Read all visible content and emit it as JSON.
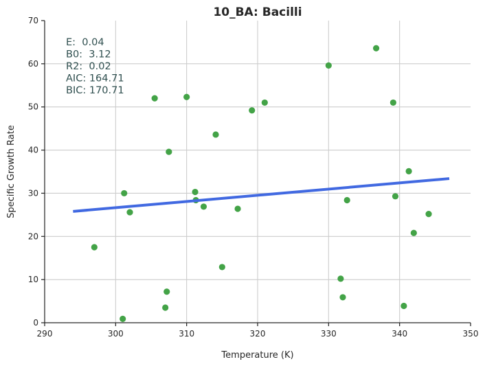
{
  "chart_data": {
    "type": "scatter",
    "title": "10_BA: Bacilli",
    "xlabel": "Temperature (K)",
    "ylabel": "Specific Growth Rate",
    "xlim": [
      290,
      350
    ],
    "ylim": [
      0,
      70
    ],
    "xticks": [
      290,
      300,
      310,
      320,
      330,
      340,
      350
    ],
    "yticks": [
      0,
      10,
      20,
      30,
      40,
      50,
      60,
      70
    ],
    "grid": true,
    "points": [
      {
        "x": 297.0,
        "y": 17.5
      },
      {
        "x": 301.0,
        "y": 0.9
      },
      {
        "x": 301.2,
        "y": 30.0
      },
      {
        "x": 302.0,
        "y": 25.6
      },
      {
        "x": 305.5,
        "y": 52.0
      },
      {
        "x": 307.0,
        "y": 3.5
      },
      {
        "x": 307.2,
        "y": 7.2
      },
      {
        "x": 307.5,
        "y": 39.6
      },
      {
        "x": 310.0,
        "y": 52.3
      },
      {
        "x": 311.2,
        "y": 30.3
      },
      {
        "x": 311.3,
        "y": 28.4
      },
      {
        "x": 312.4,
        "y": 26.9
      },
      {
        "x": 314.1,
        "y": 43.6
      },
      {
        "x": 315.0,
        "y": 12.9
      },
      {
        "x": 317.2,
        "y": 26.4
      },
      {
        "x": 319.2,
        "y": 49.2
      },
      {
        "x": 321.0,
        "y": 51.0
      },
      {
        "x": 330.0,
        "y": 59.6
      },
      {
        "x": 331.7,
        "y": 10.2
      },
      {
        "x": 332.0,
        "y": 5.9
      },
      {
        "x": 332.6,
        "y": 28.4
      },
      {
        "x": 336.7,
        "y": 63.6
      },
      {
        "x": 339.1,
        "y": 51.0
      },
      {
        "x": 339.4,
        "y": 29.3
      },
      {
        "x": 340.6,
        "y": 3.9
      },
      {
        "x": 341.3,
        "y": 35.1
      },
      {
        "x": 342.0,
        "y": 20.8
      },
      {
        "x": 344.1,
        "y": 25.2
      }
    ],
    "fit_line": {
      "x": [
        294.0,
        347.0
      ],
      "y": [
        25.8,
        33.4
      ]
    },
    "annotations": [
      "E:  0.04",
      "B0:  3.12",
      "R2:  0.02",
      "AIC: 164.71",
      "BIC: 170.71"
    ],
    "colors": {
      "points": "#43a347",
      "fit_line": "#4169e1",
      "text": "#2f4f4f"
    }
  }
}
